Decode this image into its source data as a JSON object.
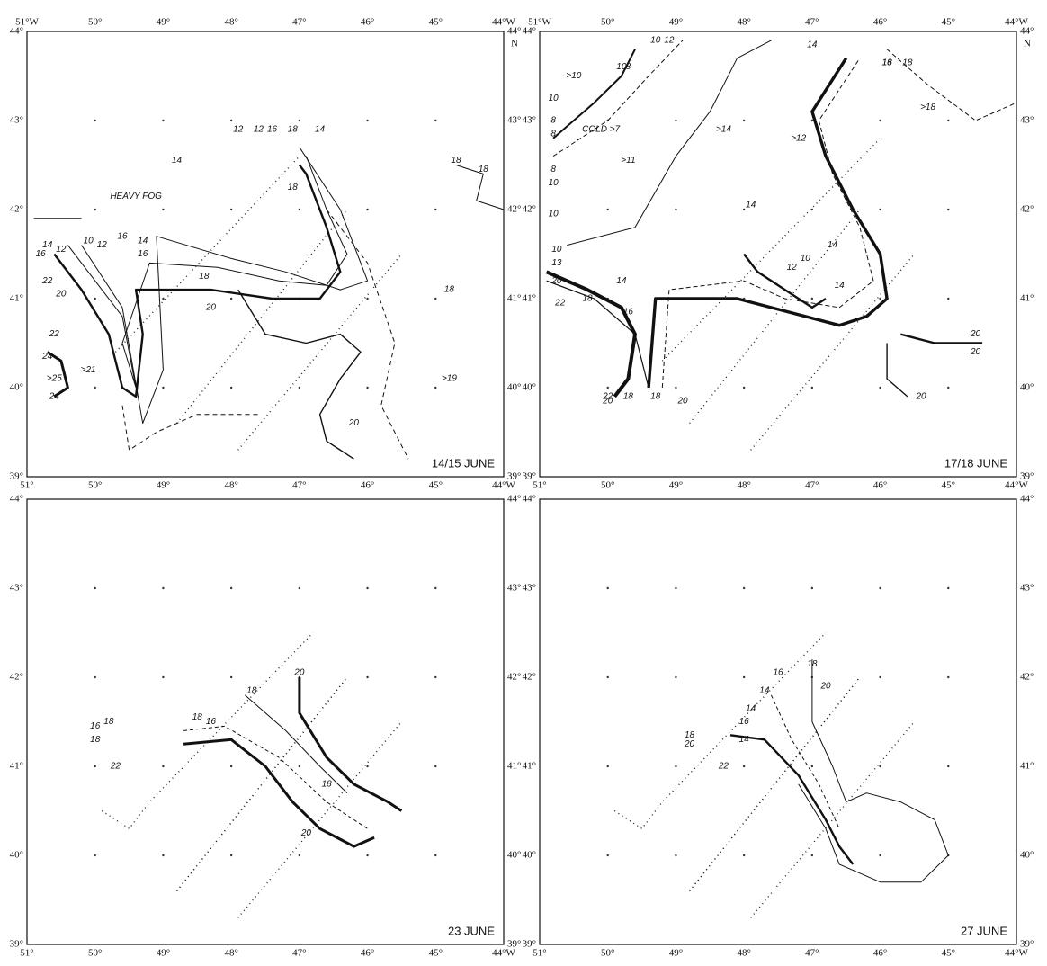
{
  "axes": {
    "lon_top": [
      "51°W",
      "50°",
      "49°",
      "48°",
      "47°",
      "46°",
      "45°",
      "44°W"
    ],
    "lon_bottom": [
      "51°",
      "50°",
      "49°",
      "48°",
      "47°",
      "46°",
      "45°",
      "44°W"
    ],
    "lat": [
      "44°",
      "43°",
      "42°",
      "41°",
      "40°",
      "39°"
    ],
    "north": "N"
  },
  "panels": [
    {
      "date": "14/15 JUNE",
      "labels": [
        "HEAVY FOG",
        "14",
        "12",
        "12",
        "16",
        "18",
        "14",
        "18",
        "18",
        "18",
        "16",
        "14",
        "10",
        "12",
        "16",
        "14",
        "12",
        "16",
        "18",
        "22",
        "20",
        "18",
        "20",
        "22",
        ">21",
        "24",
        ">25",
        "24",
        ">19",
        "20"
      ]
    },
    {
      "date": "17/18 JUNE",
      "labels": [
        ">10",
        "10",
        "8",
        "8",
        "10",
        "12",
        "14",
        "18",
        "16",
        "18",
        "COLD >7",
        "10",
        "8",
        ">14",
        ">12",
        ">18",
        "8",
        "10",
        ">11",
        "10",
        "14",
        "10",
        "13",
        "20",
        "18",
        "22",
        "14",
        "16",
        "14",
        "10",
        "12",
        "14",
        "22",
        "20",
        "18",
        "18",
        "20",
        "20",
        "20",
        "20"
      ]
    },
    {
      "date": "23 JUNE",
      "labels": [
        "20",
        "18",
        "16",
        "18",
        "16",
        "18",
        "18",
        "22",
        "18",
        "20"
      ]
    },
    {
      "date": "27 JUNE",
      "labels": [
        "18",
        "16",
        "14",
        "20",
        "14",
        "16",
        "14",
        "18",
        "20",
        "22"
      ]
    }
  ]
}
